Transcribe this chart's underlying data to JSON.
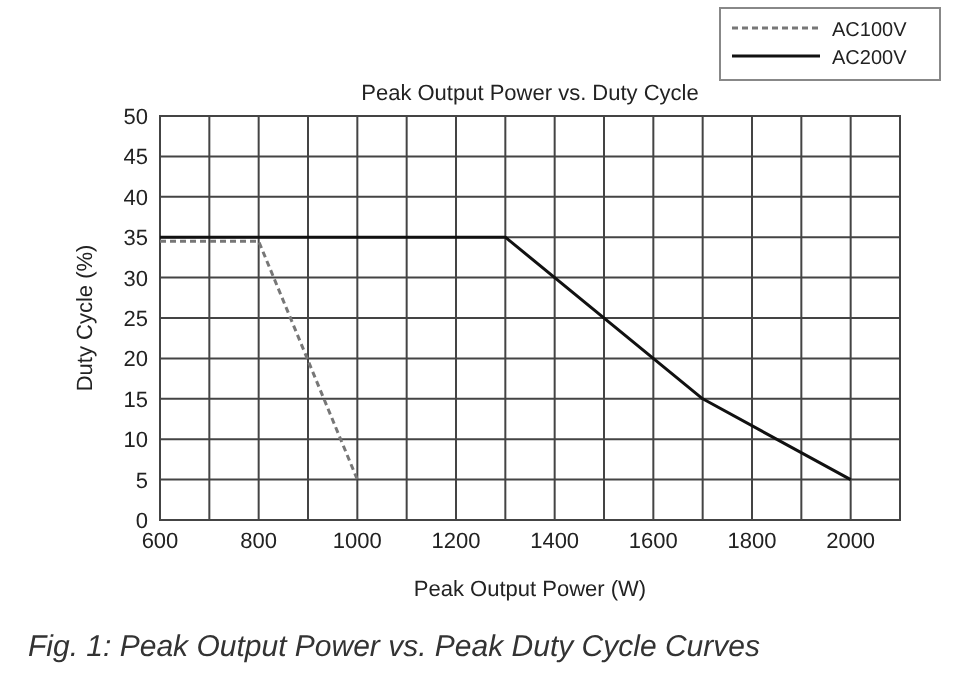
{
  "chart_data": {
    "type": "line",
    "title": "Peak Output Power vs. Duty Cycle",
    "xlabel": "Peak Output Power (W)",
    "ylabel": "Duty Cycle (%)",
    "annotations": [
      "Fig. 1: Peak Output Power vs. Peak Duty Cycle Curves"
    ],
    "xlim": [
      600,
      2100
    ],
    "ylim": [
      0,
      50
    ],
    "xticks": [
      600,
      {
        "value": 700,
        "label": null
      },
      800,
      {
        "value": 900,
        "label": null
      },
      1000,
      {
        "value": 1100,
        "label": null
      },
      1200,
      {
        "value": 1300,
        "label": null
      },
      1400,
      {
        "value": 1500,
        "label": null
      },
      1600,
      {
        "value": 1700,
        "label": null
      },
      1800,
      {
        "value": 1900,
        "label": null
      },
      2000,
      {
        "value": 2100,
        "label": null
      }
    ],
    "yticks": [
      0,
      5,
      10,
      15,
      20,
      25,
      30,
      35,
      40,
      45,
      50
    ],
    "grid": true,
    "legend": "top right",
    "marker": "none",
    "series": [
      {
        "name": "AC100V",
        "color": "#777777",
        "line_style": "dashed",
        "x": [
          600,
          800,
          1000
        ],
        "values": [
          34.5,
          34.5,
          5
        ]
      },
      {
        "name": "AC200V",
        "color": "#111111",
        "line_style": "solid",
        "x": [
          600,
          1300,
          1700,
          2000
        ],
        "values": [
          35,
          35,
          15,
          5
        ]
      }
    ]
  }
}
